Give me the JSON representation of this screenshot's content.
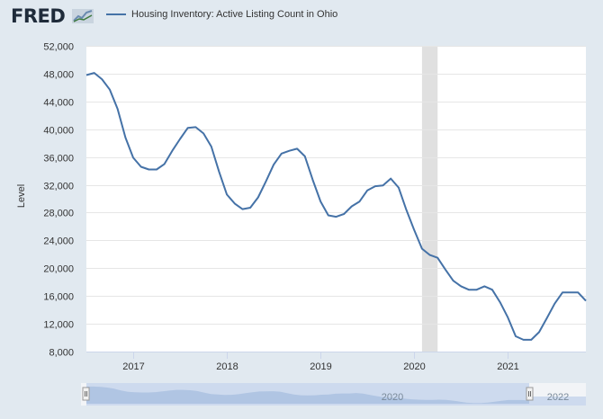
{
  "header": {
    "logo_text": "FRED",
    "series_title": "Housing Inventory: Active Listing Count in Ohio"
  },
  "colors": {
    "line": "#4572a7",
    "recession": "#e0e0e0",
    "navigator_fill": "#a9bfe0"
  },
  "chart_data": {
    "type": "line",
    "title": "",
    "xlabel": "",
    "ylabel": "Level",
    "ylim": [
      8000,
      52000
    ],
    "yticks": [
      8000,
      12000,
      16000,
      20000,
      24000,
      28000,
      32000,
      36000,
      40000,
      44000,
      48000,
      52000
    ],
    "ytick_labels": [
      "8,000",
      "12,000",
      "16,000",
      "20,000",
      "24,000",
      "28,000",
      "32,000",
      "36,000",
      "40,000",
      "44,000",
      "48,000",
      "52,000"
    ],
    "xlim": [
      "2016-07-01",
      "2021-11-01"
    ],
    "xticks": [
      "2017-01-01",
      "2018-01-01",
      "2019-01-01",
      "2020-01-01",
      "2021-01-01"
    ],
    "xtick_labels": [
      "2017",
      "2018",
      "2019",
      "2020",
      "2021"
    ],
    "recession": [
      "2020-02-01",
      "2020-04-01"
    ],
    "navigator_labels": [
      "2020",
      "2022"
    ],
    "series": [
      {
        "name": "Housing Inventory: Active Listing Count in Ohio",
        "x": [
          "2016-07",
          "2016-08",
          "2016-09",
          "2016-10",
          "2016-11",
          "2016-12",
          "2017-01",
          "2017-02",
          "2017-03",
          "2017-04",
          "2017-05",
          "2017-06",
          "2017-07",
          "2017-08",
          "2017-09",
          "2017-10",
          "2017-11",
          "2017-12",
          "2018-01",
          "2018-02",
          "2018-03",
          "2018-04",
          "2018-05",
          "2018-06",
          "2018-07",
          "2018-08",
          "2018-09",
          "2018-10",
          "2018-11",
          "2018-12",
          "2019-01",
          "2019-02",
          "2019-03",
          "2019-04",
          "2019-05",
          "2019-06",
          "2019-07",
          "2019-08",
          "2019-09",
          "2019-10",
          "2019-11",
          "2019-12",
          "2020-01",
          "2020-02",
          "2020-03",
          "2020-04",
          "2020-05",
          "2020-06",
          "2020-07",
          "2020-08",
          "2020-09",
          "2020-10",
          "2020-11",
          "2020-12",
          "2021-01",
          "2021-02",
          "2021-03",
          "2021-04",
          "2021-05",
          "2021-06",
          "2021-07",
          "2021-08",
          "2021-09",
          "2021-10",
          "2021-11"
        ],
        "values": [
          47800,
          48100,
          47200,
          45700,
          42900,
          38800,
          35900,
          34600,
          34200,
          34200,
          35000,
          36900,
          38600,
          40200,
          40300,
          39400,
          37500,
          33900,
          30600,
          29300,
          28500,
          28700,
          30200,
          32500,
          34900,
          36500,
          36900,
          37200,
          36100,
          32700,
          29600,
          27600,
          27400,
          27800,
          28900,
          29600,
          31200,
          31800,
          31900,
          32900,
          31600,
          28400,
          25500,
          22800,
          21900,
          21500,
          19800,
          18200,
          17400,
          16900,
          16900,
          17400,
          16900,
          15100,
          12900,
          10200,
          9700,
          9700,
          10800,
          12800,
          14900,
          16500,
          16500,
          16500,
          15300
        ]
      }
    ]
  }
}
